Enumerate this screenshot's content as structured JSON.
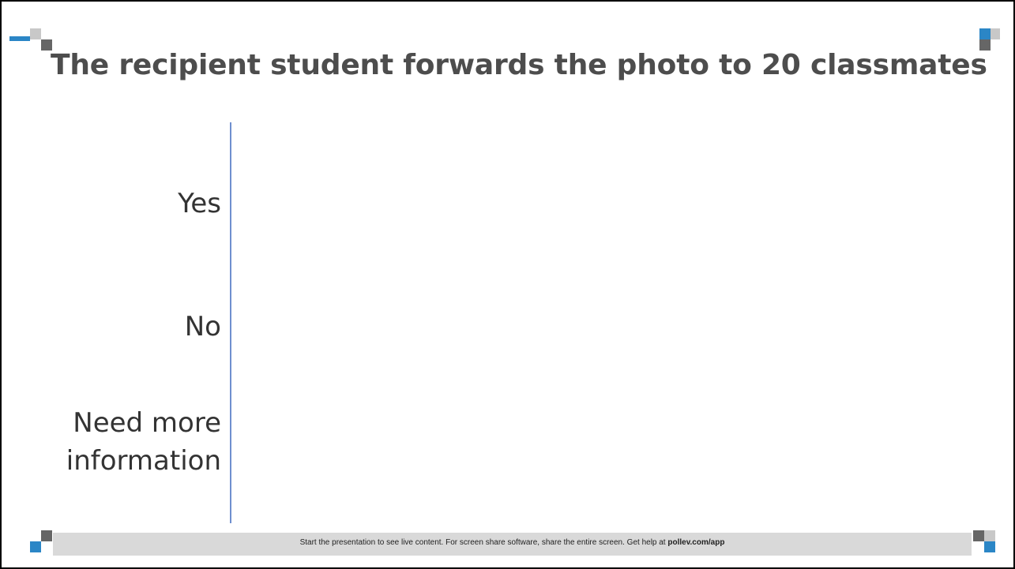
{
  "slide": {
    "title": "The recipient student forwards the photo to 20 classmates",
    "options": [
      "Yes",
      "No",
      "Need more",
      "information"
    ],
    "footer": {
      "text": "Start the presentation to see live content. For screen share software, share the entire screen. Get help at ",
      "link": "pollev.com/app"
    }
  },
  "colors": {
    "accent_blue": "#2b86c6",
    "dark_gray": "#666666",
    "light_gray": "#c8c8c8",
    "axis_line": "#6f8fcf",
    "title_text": "#4d4d4d",
    "footer_bar": "#d9d9d9"
  }
}
